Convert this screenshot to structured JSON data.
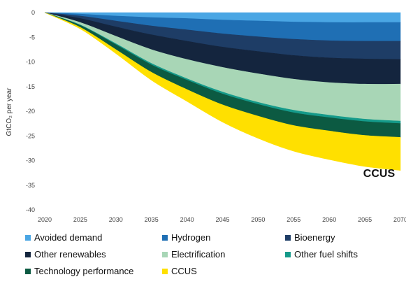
{
  "chart_data": {
    "type": "area",
    "stacked": true,
    "xlabel": "",
    "ylabel": "GtCO₂ per year",
    "x": [
      2020,
      2025,
      2030,
      2035,
      2040,
      2045,
      2050,
      2055,
      2060,
      2065,
      2070
    ],
    "x_ticks": [
      "2020",
      "2025",
      "2030",
      "2035",
      "2040",
      "2045",
      "2050",
      "2055",
      "2060",
      "2065",
      "2070"
    ],
    "y_ticks": [
      "0",
      "-5",
      "-10",
      "-15",
      "-20",
      "-25",
      "-30",
      "-35",
      "-40"
    ],
    "ylim": [
      -40,
      0
    ],
    "grid": false,
    "legend_position": "bottom",
    "series": [
      {
        "name": "Avoided demand",
        "color": "#4aa6e4",
        "values": [
          0,
          -0.3,
          -0.7,
          -1.0,
          -1.2,
          -1.5,
          -1.7,
          -1.9,
          -2.0,
          -2.0,
          -2.0
        ]
      },
      {
        "name": "Hydrogen",
        "color": "#1f6fb4",
        "values": [
          0,
          -0.4,
          -1.0,
          -1.7,
          -2.3,
          -2.8,
          -3.2,
          -3.5,
          -3.7,
          -3.8,
          -3.8
        ]
      },
      {
        "name": "Bioenergy",
        "color": "#1e3d66",
        "values": [
          0,
          -0.5,
          -1.2,
          -1.8,
          -2.3,
          -2.7,
          -3.0,
          -3.3,
          -3.5,
          -3.6,
          -3.7
        ]
      },
      {
        "name": "Other renewables",
        "color": "#14253e",
        "values": [
          0,
          -0.8,
          -1.9,
          -3.0,
          -3.7,
          -4.1,
          -4.5,
          -4.8,
          -5.0,
          -5.1,
          -5.0
        ]
      },
      {
        "name": "Electrification",
        "color": "#a8d6b6",
        "values": [
          0,
          -0.5,
          -1.5,
          -2.8,
          -3.9,
          -5.0,
          -5.8,
          -6.3,
          -6.6,
          -7.1,
          -7.5
        ]
      },
      {
        "name": "Other fuel shifts",
        "color": "#159a8a",
        "values": [
          0,
          -0.1,
          -0.2,
          -0.3,
          -0.3,
          -0.4,
          -0.4,
          -0.5,
          -0.5,
          -0.5,
          -0.5
        ]
      },
      {
        "name": "Technology performance",
        "color": "#0c5a42",
        "values": [
          0,
          -0.4,
          -1.0,
          -1.5,
          -1.9,
          -2.2,
          -2.4,
          -2.6,
          -2.7,
          -2.8,
          -2.8
        ]
      },
      {
        "name": "CCUS",
        "color": "#ffe000",
        "values": [
          0,
          -0.3,
          -0.8,
          -1.6,
          -2.4,
          -3.5,
          -4.5,
          -5.2,
          -5.8,
          -6.3,
          -6.7
        ]
      }
    ],
    "annotations": [
      {
        "text": "CCUS",
        "x": 2067,
        "y": -32.5
      }
    ]
  }
}
